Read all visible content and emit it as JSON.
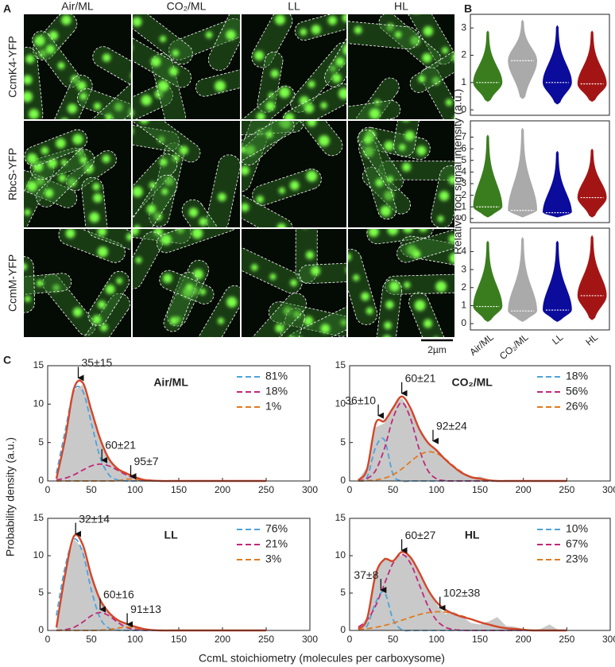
{
  "panel_labels": [
    "A",
    "B",
    "C"
  ],
  "panel_a": {
    "columns": [
      "Air/ML",
      "CO₂/ML",
      "LL",
      "HL"
    ],
    "rows": [
      "CcmK4-YFP",
      "RbcS-YFP",
      "CcmM-YFP"
    ],
    "scale_bar": "2µm"
  },
  "panel_b": {
    "ylabel": "Relative foci signal intensity (a.u.)",
    "categories": [
      "Air/ML",
      "CO₂/ML",
      "LL",
      "HL"
    ]
  },
  "panel_c": {
    "xlabel": "CcmL stoichiometry (molecules per carboxysome)",
    "ylabel": "Probability density (a.u.)"
  },
  "chart_data": [
    {
      "type": "violin",
      "colors": [
        "#3a7d1e",
        "#aaaaaa",
        "#0b0b9c",
        "#a31515"
      ],
      "medians": [
        1.0,
        1.8,
        1.0,
        0.95
      ],
      "mins": [
        0.3,
        0.4,
        0.2,
        0.3
      ],
      "maxs": [
        2.9,
        3.3,
        3.1,
        2.9
      ],
      "ylim": [
        -0.2,
        3.5
      ],
      "yticks": [
        0,
        1,
        2,
        3
      ]
    },
    {
      "type": "violin",
      "colors": [
        "#3a7d1e",
        "#aaaaaa",
        "#0b0b9c",
        "#a31515"
      ],
      "medians": [
        1.0,
        0.7,
        0.5,
        1.8
      ],
      "mins": [
        0.1,
        0.1,
        0.1,
        0.1
      ],
      "maxs": [
        7.2,
        7.8,
        5.8,
        6.0
      ],
      "ylim": [
        -0.35,
        8.4
      ],
      "yticks": [
        0,
        1,
        2,
        3,
        4,
        5,
        6,
        7
      ]
    },
    {
      "type": "violin",
      "colors": [
        "#3a7d1e",
        "#aaaaaa",
        "#0b0b9c",
        "#a31515"
      ],
      "medians": [
        0.95,
        0.7,
        0.75,
        1.55
      ],
      "mins": [
        0.1,
        0.1,
        0.1,
        0.2
      ],
      "maxs": [
        4.6,
        4.8,
        4.6,
        4.9
      ],
      "ylim": [
        -0.35,
        5.3
      ],
      "yticks": [
        0,
        1,
        2,
        3,
        4
      ]
    },
    {
      "type": "line",
      "title": "Air/ML",
      "legend": "upper right",
      "x": [
        10,
        20,
        30,
        40,
        50,
        60,
        70,
        80,
        90,
        100,
        110,
        120,
        130,
        140,
        150,
        160,
        170,
        180,
        190,
        200,
        210,
        220,
        230,
        240,
        250
      ],
      "xlim": [
        0,
        300
      ],
      "xticks": [
        0,
        50,
        100,
        150,
        200,
        250,
        300
      ],
      "ylim": [
        0,
        15
      ],
      "yticks": [
        0,
        5,
        10,
        15
      ],
      "histogram": {
        "color": "#c9c9c9",
        "values": [
          0.2,
          5.0,
          11.8,
          12.5,
          9.0,
          5.7,
          3.0,
          1.6,
          0.9,
          0.5,
          0.2,
          0.1,
          0,
          0,
          0,
          0,
          0,
          0,
          0,
          0,
          0,
          0,
          0,
          0,
          0
        ]
      },
      "fit": {
        "color": "#d2462a",
        "values": [
          0.3,
          5.5,
          12.0,
          12.8,
          9.2,
          5.5,
          2.9,
          1.6,
          1.0,
          0.5,
          0.15,
          0.05,
          0,
          0,
          0,
          0,
          0,
          0,
          0,
          0,
          0,
          0,
          0,
          0,
          0
        ]
      },
      "series": [
        {
          "name": "81%",
          "color": "#4da3db",
          "values": [
            1.0,
            6.5,
            11.73,
            11.73,
            7.52,
            3.09,
            0.81,
            0.14,
            0.01,
            0,
            0,
            0,
            0,
            0,
            0,
            0,
            0,
            0,
            0,
            0,
            0,
            0,
            0,
            0,
            0
          ]
        },
        {
          "name": "18%",
          "color": "#c0287a",
          "values": [
            0.13,
            0.36,
            0.79,
            1.4,
            1.96,
            2.2,
            1.96,
            1.4,
            0.79,
            0.36,
            0.13,
            0.04,
            0.01,
            0,
            0,
            0,
            0,
            0,
            0,
            0,
            0,
            0,
            0,
            0,
            0
          ]
        },
        {
          "name": "1%",
          "color": "#e07b20",
          "values": [
            0,
            0,
            0,
            0,
            0,
            0,
            0,
            0.03,
            0.23,
            0.23,
            0.03,
            0,
            0,
            0,
            0,
            0,
            0,
            0,
            0,
            0,
            0,
            0,
            0,
            0,
            0
          ]
        }
      ],
      "annotations": [
        {
          "text": "35±15",
          "x": 35,
          "y": 13.2
        },
        {
          "text": "60±21",
          "x": 62,
          "y": 2.5
        },
        {
          "text": "95±7",
          "x": 95,
          "y": 0.4
        }
      ]
    },
    {
      "type": "line",
      "title": "CO₂/ML",
      "legend": "upper right",
      "x": [
        10,
        20,
        30,
        40,
        50,
        60,
        70,
        80,
        90,
        100,
        110,
        120,
        130,
        140,
        150,
        160,
        170,
        180,
        190,
        200,
        210,
        220,
        230,
        240,
        250
      ],
      "xlim": [
        0,
        300
      ],
      "xticks": [
        0,
        50,
        100,
        150,
        200,
        250,
        300
      ],
      "ylim": [
        0,
        15
      ],
      "yticks": [
        0,
        5,
        10,
        15
      ],
      "histogram": {
        "color": "#c9c9c9",
        "values": [
          0.2,
          1.8,
          7.0,
          7.5,
          9.8,
          10.8,
          9.2,
          7.0,
          5.2,
          3.8,
          2.6,
          1.6,
          0.9,
          0.4,
          0.6,
          0.2,
          0,
          0,
          0,
          0,
          0,
          0,
          0,
          0,
          0
        ]
      },
      "fit": {
        "color": "#d2462a",
        "values": [
          0.1,
          1.5,
          7.5,
          7.8,
          9.5,
          11.0,
          9.5,
          6.8,
          5.0,
          4.0,
          2.8,
          1.8,
          1.0,
          0.5,
          0.3,
          0.1,
          0,
          0,
          0,
          0,
          0,
          0,
          0,
          0,
          0
        ]
      },
      "series": [
        {
          "name": "18%",
          "color": "#4da3db",
          "values": [
            0,
            0.46,
            4.37,
            5.35,
            0.85,
            0.02,
            0,
            0,
            0,
            0,
            0,
            0,
            0,
            0,
            0,
            0,
            0,
            0,
            0,
            0,
            0,
            0,
            0,
            0,
            0
          ]
        },
        {
          "name": "56%",
          "color": "#c0287a",
          "values": [
            0,
            0.29,
            1.38,
            4.19,
            8.17,
            10.2,
            8.17,
            4.19,
            1.38,
            0.29,
            0.04,
            0,
            0,
            0,
            0,
            0,
            0,
            0,
            0,
            0,
            0,
            0,
            0,
            0,
            0
          ]
        },
        {
          "name": "26%",
          "color": "#e07b20",
          "values": [
            0.01,
            0.04,
            0.13,
            0.36,
            0.82,
            1.56,
            2.5,
            3.35,
            3.79,
            3.59,
            2.87,
            1.92,
            1.09,
            0.51,
            0.21,
            0.07,
            0.02,
            0,
            0,
            0,
            0,
            0,
            0,
            0,
            0
          ]
        }
      ],
      "annotations": [
        {
          "text": "36±10",
          "x": 33,
          "y": 8.3
        },
        {
          "text": "60±21",
          "x": 60,
          "y": 11.2
        },
        {
          "text": "92±24",
          "x": 96,
          "y": 5.0
        }
      ]
    },
    {
      "type": "line",
      "title": "LL",
      "legend": "upper right",
      "x": [
        10,
        20,
        30,
        40,
        50,
        60,
        70,
        80,
        90,
        100,
        110,
        120,
        130,
        140,
        150,
        160,
        170,
        180,
        190,
        200,
        210,
        220,
        230,
        240,
        250
      ],
      "xlim": [
        0,
        300
      ],
      "xticks": [
        0,
        50,
        100,
        150,
        200,
        250,
        300
      ],
      "ylim": [
        0,
        15
      ],
      "yticks": [
        0,
        5,
        10,
        15
      ],
      "histogram": {
        "color": "#c9c9c9",
        "values": [
          0.3,
          8.0,
          12.2,
          11.0,
          7.0,
          4.3,
          2.5,
          1.5,
          0.9,
          0.5,
          0.2,
          0.1,
          0,
          0,
          0,
          0,
          0,
          0,
          0,
          0,
          0,
          0,
          0,
          0,
          0
        ]
      },
      "fit": {
        "color": "#d2462a",
        "values": [
          0.4,
          7.5,
          12.6,
          11.5,
          7.3,
          4.1,
          2.4,
          1.4,
          0.9,
          0.5,
          0.2,
          0.05,
          0,
          0,
          0,
          0,
          0,
          0,
          0,
          0,
          0,
          0,
          0,
          0,
          0
        ]
      },
      "series": [
        {
          "name": "76%",
          "color": "#4da3db",
          "values": [
            2.0,
            8.52,
            12.18,
            10.44,
            5.38,
            1.66,
            0.31,
            0.03,
            0,
            0,
            0,
            0,
            0,
            0,
            0,
            0,
            0,
            0,
            0,
            0,
            0,
            0,
            0,
            0,
            0
          ]
        },
        {
          "name": "21%",
          "color": "#c0287a",
          "values": [
            0,
            0.11,
            0.41,
            1.1,
            1.97,
            2.4,
            1.97,
            1.1,
            0.41,
            0.11,
            0.02,
            0,
            0,
            0,
            0,
            0,
            0,
            0,
            0,
            0,
            0,
            0,
            0,
            0,
            0
          ]
        },
        {
          "name": "3%",
          "color": "#e07b20",
          "values": [
            0,
            0,
            0,
            0,
            0,
            0.03,
            0.12,
            0.31,
            0.45,
            0.35,
            0.15,
            0.04,
            0,
            0,
            0,
            0,
            0,
            0,
            0,
            0,
            0,
            0,
            0,
            0,
            0
          ]
        }
      ],
      "annotations": [
        {
          "text": "32±14",
          "x": 32,
          "y": 12.7
        },
        {
          "text": "60±16",
          "x": 60,
          "y": 2.6
        },
        {
          "text": "91±13",
          "x": 91,
          "y": 0.6
        }
      ]
    },
    {
      "type": "line",
      "title": "HL",
      "legend": "upper right",
      "x": [
        10,
        20,
        30,
        40,
        50,
        60,
        70,
        80,
        90,
        100,
        110,
        120,
        130,
        140,
        150,
        160,
        170,
        180,
        190,
        200,
        210,
        220,
        230,
        240,
        250
      ],
      "xlim": [
        0,
        300
      ],
      "xticks": [
        0,
        50,
        100,
        150,
        200,
        250,
        300
      ],
      "ylim": [
        0,
        15
      ],
      "yticks": [
        0,
        5,
        10,
        15
      ],
      "histogram": {
        "color": "#c9c9c9",
        "values": [
          0.2,
          1.8,
          7.8,
          9.8,
          9.2,
          10.2,
          10.0,
          7.8,
          5.5,
          3.5,
          2.2,
          2.5,
          1.8,
          1.0,
          0.8,
          1.2,
          1.8,
          0.6,
          0.5,
          0.2,
          0.1,
          0.2,
          0.8,
          0.1,
          0
        ]
      },
      "fit": {
        "color": "#d2462a",
        "values": [
          0.2,
          1.5,
          7.5,
          9.5,
          9.3,
          10.5,
          9.8,
          7.8,
          5.5,
          3.8,
          2.8,
          2.2,
          1.8,
          1.5,
          1.1,
          0.8,
          0.5,
          0.3,
          0.2,
          0.1,
          0,
          0,
          0,
          0,
          0
        ]
      },
      "series": [
        {
          "name": "10%",
          "color": "#4da3db",
          "values": [
            0,
            0.58,
            3.75,
            5.13,
            1.47,
            0.09,
            0,
            0,
            0,
            0,
            0,
            0,
            0,
            0,
            0,
            0,
            0,
            0,
            0,
            0,
            0,
            0,
            0,
            0,
            0
          ]
        },
        {
          "name": "67%",
          "color": "#c0287a",
          "values": [
            0.45,
            1.38,
            3.32,
            6.19,
            9.0,
            10.2,
            9.0,
            6.19,
            3.32,
            1.38,
            0.45,
            0.11,
            0.02,
            0,
            0,
            0,
            0,
            0,
            0,
            0,
            0,
            0,
            0,
            0,
            0
          ]
        },
        {
          "name": "23%",
          "color": "#e07b20",
          "values": [
            0.13,
            0.24,
            0.41,
            0.66,
            0.98,
            1.36,
            1.75,
            2.11,
            2.38,
            2.5,
            2.45,
            2.24,
            1.91,
            1.52,
            1.13,
            0.78,
            0.51,
            0.3,
            0.17,
            0.09,
            0.04,
            0.02,
            0.01,
            0,
            0
          ]
        }
      ],
      "annotations": [
        {
          "text": "37±8",
          "x": 36,
          "y": 5.2
        },
        {
          "text": "60±27",
          "x": 60,
          "y": 10.5
        },
        {
          "text": "102±38",
          "x": 104,
          "y": 2.8
        }
      ]
    }
  ]
}
